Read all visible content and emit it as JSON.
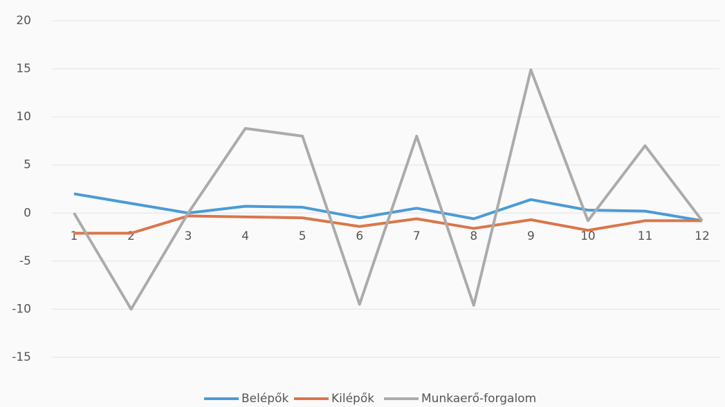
{
  "chart_data": {
    "type": "line",
    "categories": [
      "1",
      "2",
      "3",
      "4",
      "5",
      "6",
      "7",
      "8",
      "9",
      "10",
      "11",
      "12"
    ],
    "series": [
      {
        "name": "Belépők",
        "color": "#4a9bd6",
        "values": [
          2,
          1,
          0,
          0.7,
          0.6,
          -0.5,
          0.5,
          -0.6,
          1.4,
          0.3,
          0.2,
          -0.8
        ]
      },
      {
        "name": "Kilépők",
        "color": "#d9764a",
        "values": [
          -2.1,
          -2.1,
          -0.3,
          -0.4,
          -0.5,
          -1.4,
          -0.6,
          -1.6,
          -0.7,
          -1.8,
          -0.8,
          -0.8
        ]
      },
      {
        "name": "Munkaerő-forgalom",
        "color": "#ababab",
        "values": [
          0,
          -10,
          0,
          8.8,
          8,
          -9.5,
          8,
          -9.6,
          14.9,
          -0.8,
          7,
          -0.8
        ]
      }
    ],
    "ylim": [
      -15,
      20
    ],
    "yticks": [
      -15,
      -10,
      -5,
      0,
      5,
      10,
      15,
      20
    ],
    "grid": true,
    "legend": "bottom"
  }
}
